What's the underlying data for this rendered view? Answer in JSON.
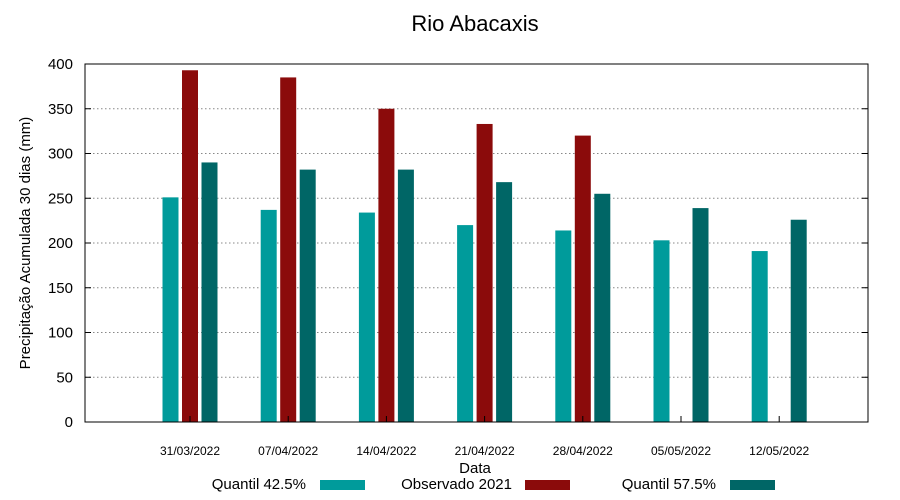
{
  "chart_data": {
    "type": "bar",
    "title": "Rio Abacaxis",
    "xlabel": "Data",
    "ylabel": "Precipitação Acumulada 30 dias (mm)",
    "ylim": [
      0,
      400
    ],
    "yticks": [
      0,
      50,
      100,
      150,
      200,
      250,
      300,
      350,
      400
    ],
    "grid": true,
    "legend_position": "bottom",
    "categories": [
      "31/03/2022",
      "07/04/2022",
      "14/04/2022",
      "21/04/2022",
      "28/04/2022",
      "05/05/2022",
      "12/05/2022"
    ],
    "series": [
      {
        "name": "Quantil 42.5%",
        "color": "#009b9b",
        "values": [
          251,
          237,
          234,
          220,
          214,
          203,
          191
        ]
      },
      {
        "name": "Observado 2021",
        "color": "#8b0b0b",
        "values": [
          393,
          385,
          350,
          333,
          320,
          null,
          null
        ]
      },
      {
        "name": "Quantil 57.5%",
        "color": "#006666",
        "values": [
          290,
          282,
          282,
          268,
          255,
          239,
          226
        ]
      }
    ]
  }
}
